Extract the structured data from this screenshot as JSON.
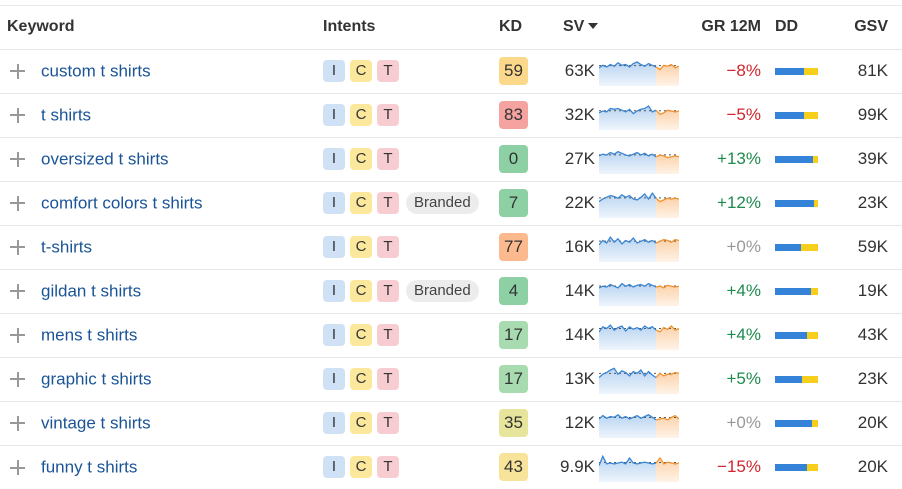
{
  "header": {
    "keyword": "Keyword",
    "intents": "Intents",
    "kd": "KD",
    "sv": "SV",
    "gr12m": "GR 12M",
    "dd": "DD",
    "gsv": "GSV"
  },
  "colors": {
    "link": "#1a5496",
    "intent_i": "#cfe1f5",
    "intent_c": "#fbe89d",
    "intent_t": "#f7cdd1",
    "kd_59": "#fcd98a",
    "kd_83": "#f5a3a0",
    "kd_green": "#8dd0a4",
    "kd_light_green": "#a9dbb1",
    "kd_77": "#fcb98e",
    "kd_35": "#e7e59b",
    "kd_43": "#f8e39a",
    "negative": "#d1262e",
    "positive": "#1d8a4e",
    "neutral": "#999999",
    "dd_blue": "#3583d8",
    "dd_yellow": "#f6cf1d"
  },
  "rows": [
    {
      "keyword": "custom t shirts",
      "intents": [
        "I",
        "C",
        "T"
      ],
      "branded": "",
      "kd": "59",
      "kd_color": "#fcd98a",
      "sv": "63K",
      "gr": "−8%",
      "gr_type": "neg",
      "dd_blue": 0.67,
      "gsv": "81K",
      "trend": [
        14,
        11,
        13,
        10,
        12,
        8,
        11,
        10,
        13,
        9,
        7,
        10,
        12,
        9,
        11,
        13,
        16,
        11,
        12,
        10,
        14,
        12
      ]
    },
    {
      "keyword": "t shirts",
      "intents": [
        "I",
        "C",
        "T"
      ],
      "branded": "",
      "kd": "83",
      "kd_color": "#f5a3a0",
      "sv": "32K",
      "gr": "−5%",
      "gr_type": "neg",
      "dd_blue": 0.68,
      "gsv": "99K",
      "trend": [
        15,
        13,
        14,
        10,
        11,
        10,
        12,
        14,
        11,
        16,
        13,
        11,
        10,
        7,
        14,
        12,
        17,
        15,
        12,
        13,
        14,
        13
      ]
    },
    {
      "keyword": "oversized t shirts",
      "intents": [
        "I",
        "C",
        "T"
      ],
      "branded": "",
      "kd": "0",
      "kd_color": "#8dd0a4",
      "sv": "27K",
      "gr": "+13%",
      "gr_type": "pos",
      "dd_blue": 0.88,
      "gsv": "39K",
      "trend": [
        14,
        12,
        13,
        10,
        12,
        9,
        11,
        13,
        14,
        12,
        10,
        13,
        11,
        14,
        12,
        15,
        13,
        14,
        16,
        15,
        14,
        15
      ]
    },
    {
      "keyword": "comfort colors t shirts",
      "intents": [
        "I",
        "C",
        "T"
      ],
      "branded": "Branded",
      "kd": "7",
      "kd_color": "#8dd0a4",
      "sv": "22K",
      "gr": "+12%",
      "gr_type": "pos",
      "dd_blue": 0.9,
      "gsv": "23K",
      "trend": [
        16,
        13,
        11,
        9,
        10,
        12,
        8,
        11,
        9,
        13,
        14,
        11,
        7,
        13,
        6,
        12,
        16,
        14,
        12,
        13,
        12,
        13
      ]
    },
    {
      "keyword": "t-shirts",
      "intents": [
        "I",
        "C",
        "T"
      ],
      "branded": "",
      "kd": "77",
      "kd_color": "#fcb98e",
      "sv": "16K",
      "gr": "+0%",
      "gr_type": "zero",
      "dd_blue": 0.6,
      "gsv": "59K",
      "trend": [
        15,
        10,
        13,
        6,
        12,
        8,
        14,
        10,
        12,
        7,
        13,
        11,
        9,
        12,
        10,
        13,
        11,
        9,
        10,
        12,
        9,
        10
      ]
    },
    {
      "keyword": "gildan t shirts",
      "intents": [
        "I",
        "C",
        "T"
      ],
      "branded": "Branded",
      "kd": "4",
      "kd_color": "#8dd0a4",
      "sv": "14K",
      "gr": "+4%",
      "gr_type": "pos",
      "dd_blue": 0.84,
      "gsv": "19K",
      "trend": [
        14,
        12,
        13,
        10,
        12,
        14,
        9,
        12,
        10,
        13,
        11,
        10,
        12,
        9,
        11,
        13,
        12,
        14,
        11,
        12,
        13,
        12
      ]
    },
    {
      "keyword": "mens t shirts",
      "intents": [
        "I",
        "C",
        "T"
      ],
      "branded": "",
      "kd": "17",
      "kd_color": "#a9dbb1",
      "sv": "14K",
      "gr": "+4%",
      "gr_type": "pos",
      "dd_blue": 0.75,
      "gsv": "43K",
      "trend": [
        14,
        8,
        10,
        6,
        12,
        9,
        7,
        13,
        8,
        11,
        9,
        12,
        7,
        10,
        8,
        12,
        14,
        9,
        11,
        7,
        12,
        10
      ]
    },
    {
      "keyword": "graphic t shirts",
      "intents": [
        "I",
        "C",
        "T"
      ],
      "branded": "",
      "kd": "17",
      "kd_color": "#a9dbb1",
      "sv": "13K",
      "gr": "+5%",
      "gr_type": "pos",
      "dd_blue": 0.63,
      "gsv": "23K",
      "trend": [
        16,
        12,
        10,
        7,
        5,
        12,
        8,
        10,
        14,
        9,
        11,
        7,
        14,
        9,
        13,
        16,
        11,
        14,
        12,
        12,
        10,
        11
      ]
    },
    {
      "keyword": "vintage t shirts",
      "intents": [
        "I",
        "C",
        "T"
      ],
      "branded": "",
      "kd": "35",
      "kd_color": "#e7e59b",
      "sv": "12K",
      "gr": "+0%",
      "gr_type": "zero",
      "dd_blue": 0.85,
      "gsv": "20K",
      "trend": [
        13,
        9,
        12,
        10,
        11,
        8,
        12,
        10,
        13,
        11,
        9,
        12,
        10,
        8,
        11,
        14,
        13,
        12,
        14,
        11,
        9,
        13
      ]
    },
    {
      "keyword": "funny t shirts",
      "intents": [
        "I",
        "C",
        "T"
      ],
      "branded": "",
      "kd": "43",
      "kd_color": "#f8e39a",
      "sv": "9.9K",
      "gr": "−15%",
      "gr_type": "neg",
      "dd_blue": 0.75,
      "gsv": "20K",
      "trend": [
        16,
        5,
        14,
        13,
        14,
        13,
        12,
        14,
        7,
        13,
        14,
        13,
        12,
        13,
        14,
        13,
        7,
        14,
        12,
        13,
        14,
        13
      ]
    }
  ]
}
